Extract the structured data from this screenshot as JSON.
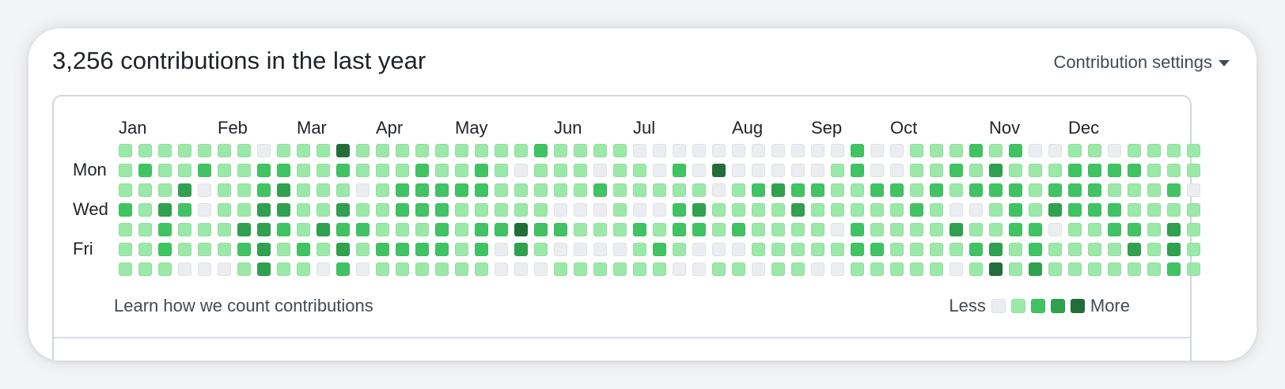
{
  "header": {
    "title": "3,256 contributions in the last year",
    "settings_label": "Contribution settings",
    "settings_icon": "triangle-down-icon"
  },
  "calendar": {
    "months": [
      {
        "label": "Jan",
        "week": 0
      },
      {
        "label": "Feb",
        "week": 5
      },
      {
        "label": "Mar",
        "week": 9
      },
      {
        "label": "Apr",
        "week": 13
      },
      {
        "label": "May",
        "week": 17
      },
      {
        "label": "Jun",
        "week": 22
      },
      {
        "label": "Jul",
        "week": 26
      },
      {
        "label": "Aug",
        "week": 31
      },
      {
        "label": "Sep",
        "week": 35
      },
      {
        "label": "Oct",
        "week": 39
      },
      {
        "label": "Nov",
        "week": 44
      },
      {
        "label": "Dec",
        "week": 48
      }
    ],
    "day_labels": [
      {
        "label": "Mon",
        "row": 1
      },
      {
        "label": "Wed",
        "row": 3
      },
      {
        "label": "Fri",
        "row": 5
      }
    ],
    "level_colors": [
      "#ebedf0",
      "#9be9a8",
      "#40c463",
      "#30a14e",
      "#216e39"
    ],
    "grid": [
      "1111111011141111111112111100000000000200111212001101111",
      "1211211221121112112101110110204000001200112131112222111",
      "1113011231110122222111112111110123221122121222122211120",
      "2132011331131122211111000100231111311111210012132221111",
      "1121113321322111212242211121221211110211113112201122131",
      "1121112312131222212031000012100011111221111231211113131",
      "1110001311020111111000111111001101100111110141311111121"
    ]
  },
  "footer": {
    "learn_link": "Learn how we count contributions",
    "legend_less": "Less",
    "legend_more": "More"
  }
}
